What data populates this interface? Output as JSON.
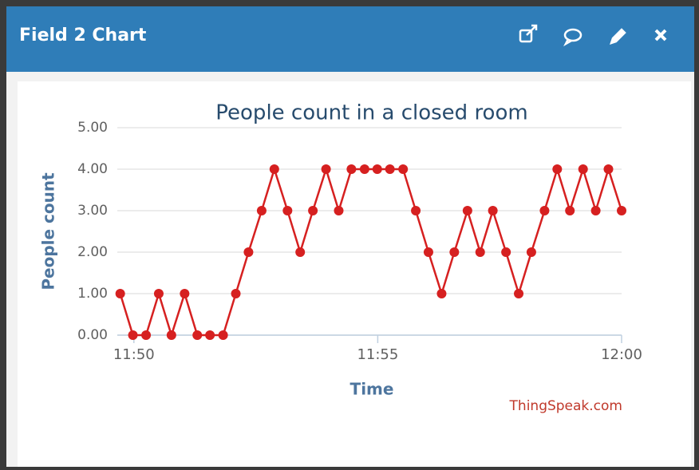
{
  "header": {
    "title": "Field 2 Chart"
  },
  "chart_data": {
    "type": "line",
    "title": "People count in a closed room",
    "x_label": "Time",
    "y_label": "People count",
    "credits": "ThingSpeak.com",
    "x": [
      709.72,
      709.98,
      710.25,
      710.51,
      710.77,
      711.04,
      711.3,
      711.56,
      711.83,
      712.09,
      712.35,
      712.62,
      712.88,
      713.15,
      713.41,
      713.67,
      713.94,
      714.2,
      714.46,
      714.73,
      714.99,
      715.25,
      715.52,
      715.78,
      716.04,
      716.31,
      716.57,
      716.84,
      717.1,
      717.36,
      717.63,
      717.89,
      718.15,
      718.42,
      718.68,
      718.94,
      719.21,
      719.47,
      719.73,
      720.0
    ],
    "series": [
      {
        "name": "People count",
        "color": "#d62020",
        "values": [
          1,
          0,
          0,
          1,
          0,
          1,
          0,
          0,
          0,
          1,
          2,
          3,
          4,
          3,
          2,
          3,
          4,
          3,
          4,
          4,
          4,
          4,
          4,
          3,
          2,
          1,
          2,
          3,
          2,
          3,
          2,
          1,
          2,
          3,
          4,
          3,
          4,
          3,
          4,
          3
        ]
      }
    ],
    "xlim": [
      709.66,
      720
    ],
    "xticks": [
      {
        "value": 710,
        "label": "11:50"
      },
      {
        "value": 715,
        "label": "11:55"
      },
      {
        "value": 720,
        "label": "12:00"
      }
    ],
    "ylim": [
      0,
      5
    ],
    "yticks": [
      {
        "value": 0,
        "label": "0.00"
      },
      {
        "value": 1,
        "label": "1.00"
      },
      {
        "value": 2,
        "label": "2.00"
      },
      {
        "value": 3,
        "label": "3.00"
      },
      {
        "value": 4,
        "label": "4.00"
      },
      {
        "value": 5,
        "label": "5.00"
      }
    ],
    "grid": true
  }
}
